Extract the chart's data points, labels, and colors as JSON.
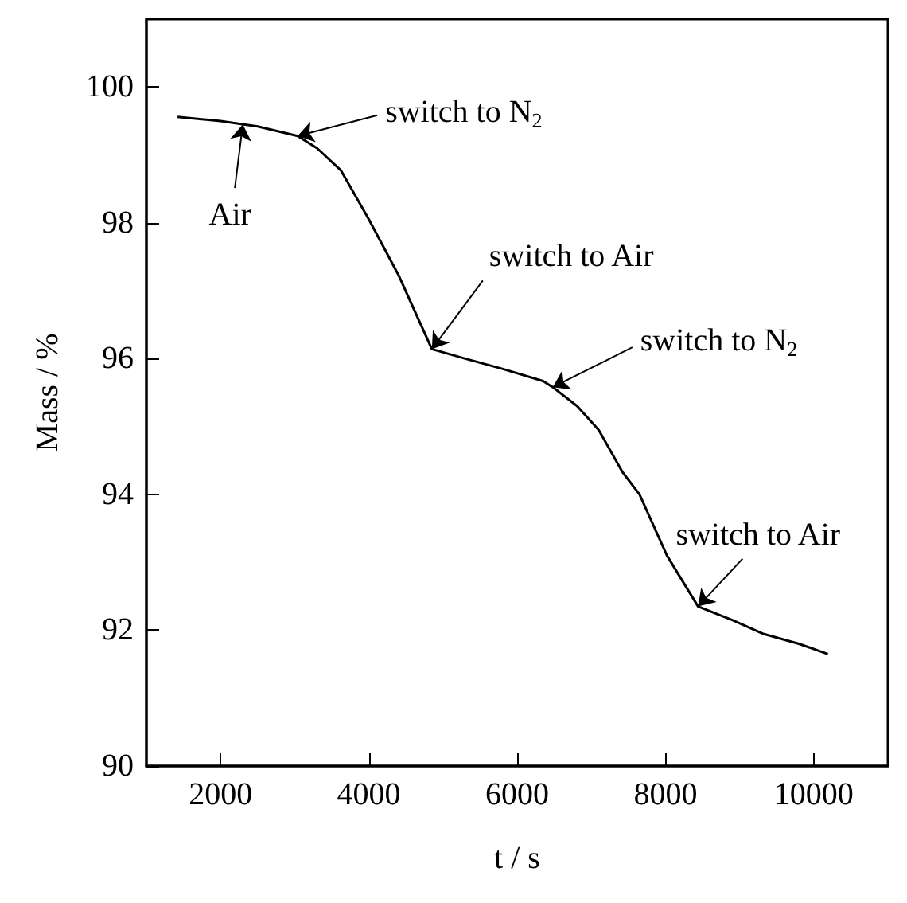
{
  "chart_data": {
    "type": "line",
    "xlabel": "t / s",
    "ylabel": "Mass / %",
    "x": [
      1420,
      2000,
      2500,
      3040,
      3300,
      3625,
      4000,
      4400,
      4850,
      5300,
      5800,
      6350,
      6480,
      6810,
      7100,
      7420,
      7650,
      8020,
      8440,
      8900,
      9310,
      9800,
      10190
    ],
    "series": [
      {
        "color": "#000000",
        "values": [
          99.56,
          99.5,
          99.42,
          99.28,
          99.1,
          98.77,
          98.05,
          97.23,
          96.14,
          96.0,
          95.85,
          95.67,
          95.58,
          95.3,
          94.95,
          94.33,
          94.0,
          93.1,
          92.35,
          92.15,
          91.95,
          91.8,
          91.65
        ]
      }
    ],
    "xlim": [
      1000,
      11000
    ],
    "ylim": [
      90,
      101
    ],
    "xticks": [
      2000,
      4000,
      6000,
      8000,
      10000
    ],
    "yticks": [
      90,
      92,
      94,
      96,
      98,
      100
    ],
    "marker": "none",
    "line_style": "solid",
    "annotations": [
      {
        "text": "Air",
        "x": 2300,
        "y": 99.45
      },
      {
        "text": "switch to N$_{2}$",
        "x": 3040,
        "y": 99.28
      },
      {
        "text": "switch to Air",
        "x": 4850,
        "y": 96.14
      },
      {
        "text": "switch to N$_{2}$",
        "x": 6480,
        "y": 95.58
      },
      {
        "text": "switch to Air",
        "x": 8440,
        "y": 92.35
      }
    ]
  }
}
